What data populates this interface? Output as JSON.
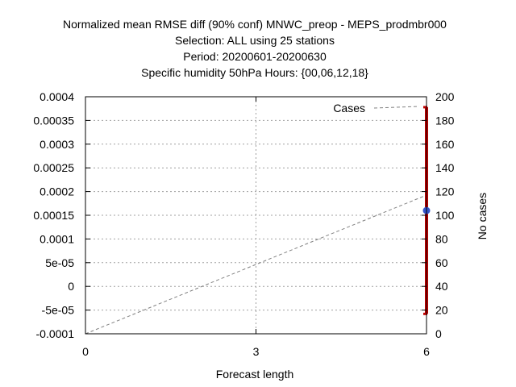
{
  "chart_data": {
    "type": "line",
    "title_lines": [
      "Normalized mean RMSE diff (90% conf) MNWC_preop - MEPS_prodmbr000",
      "Selection: ALL using    25 stations",
      "Period: 20200601-20200630",
      "Specific humidity 50hPa   Hours: {00,06,12,18}"
    ],
    "xlabel": "Forecast length",
    "ylabel": "",
    "y2label": "No cases",
    "xlim": [
      0,
      6
    ],
    "ylim": [
      -0.0001,
      0.0004
    ],
    "y2lim": [
      0,
      200
    ],
    "x_ticks": [
      0,
      3,
      6
    ],
    "x_tick_labels": [
      "0",
      "3",
      "6"
    ],
    "y_ticks": [
      -0.0001,
      -5e-05,
      0,
      5e-05,
      0.0001,
      0.00015,
      0.0002,
      0.00025,
      0.0003,
      0.00035,
      0.0004
    ],
    "y_tick_labels": [
      "-0.0001",
      "-5e-05",
      "0",
      "5e-05",
      "0.0001",
      "0.00015",
      "0.0002",
      "0.00025",
      "0.0003",
      "0.00035",
      "0.0004"
    ],
    "y2_ticks": [
      0,
      20,
      40,
      60,
      80,
      100,
      120,
      140,
      160,
      180,
      200
    ],
    "y2_tick_labels": [
      "0",
      "20",
      "40",
      "60",
      "80",
      "100",
      "120",
      "140",
      "160",
      "180",
      "200"
    ],
    "grid": true,
    "legend": {
      "placement": "top-right",
      "entries": [
        "Cases"
      ]
    },
    "series": [
      {
        "name": "Cases",
        "axis": "y2",
        "style": "dashed",
        "color": "#808080",
        "x": [
          0,
          6
        ],
        "values": [
          0,
          117
        ]
      }
    ],
    "errorbar": {
      "x": 6,
      "center": 0.00016,
      "low": -5.8e-05,
      "high": 0.000378,
      "color": "#c00000",
      "marker_color": "#3355cc"
    }
  }
}
